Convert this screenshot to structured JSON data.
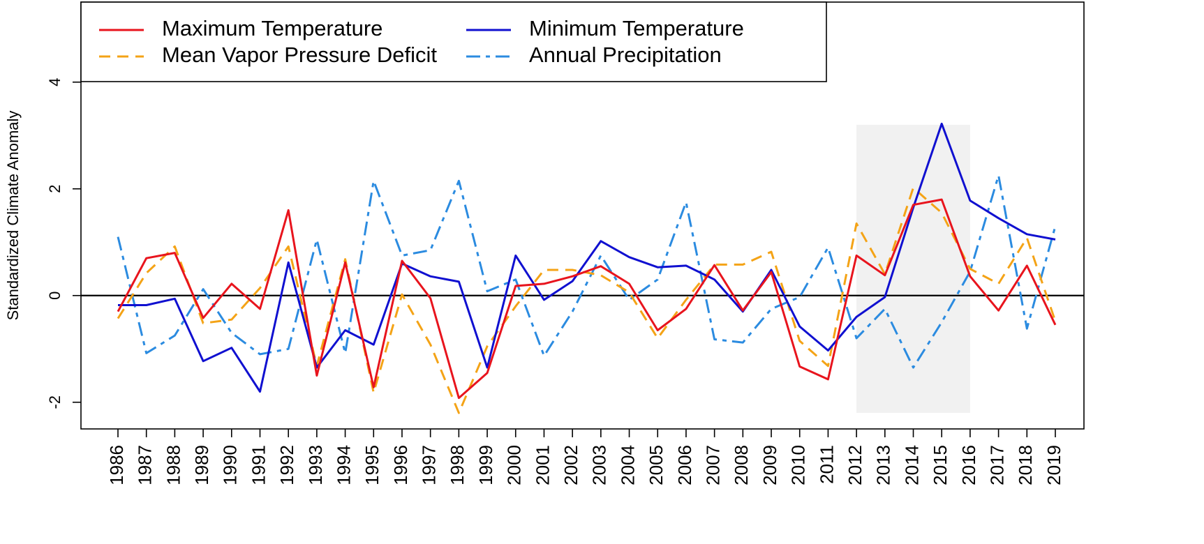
{
  "chart_data": {
    "type": "line",
    "ylabel": "Standardized Climate Anomaly",
    "ylim": [
      -2.5,
      5.5
    ],
    "yticks": [
      -2,
      0,
      2,
      4
    ],
    "ytick_labels": [
      "-2",
      "0",
      "2",
      "4"
    ],
    "zero_line": true,
    "grid": false,
    "legend_placement": "top-left",
    "shaded_range": [
      2012,
      2016
    ],
    "shaded_ylim": [
      -2.2,
      3.2
    ],
    "x": [
      1986,
      1987,
      1988,
      1989,
      1990,
      1991,
      1992,
      1993,
      1994,
      1995,
      1996,
      1997,
      1998,
      1999,
      2000,
      2001,
      2002,
      2003,
      2004,
      2005,
      2006,
      2007,
      2008,
      2009,
      2010,
      2011,
      2012,
      2013,
      2014,
      2015,
      2016,
      2017,
      2018,
      2019
    ],
    "xtick_labels": [
      "1986",
      "1987",
      "1988",
      "1989",
      "1990",
      "1991",
      "1992",
      "1993",
      "1994",
      "1995",
      "1996",
      "1997",
      "1998",
      "1999",
      "2000",
      "2001",
      "2002",
      "2003",
      "2004",
      "2005",
      "2006",
      "2007",
      "2008",
      "2009",
      "2010",
      "2011",
      "2012",
      "2013",
      "2014",
      "2015",
      "2016",
      "2017",
      "2018",
      "2019"
    ],
    "series": [
      {
        "name": "Maximum Temperature",
        "color": "#e8141d",
        "dash": "solid",
        "values": [
          -0.3,
          0.7,
          0.8,
          -0.42,
          0.22,
          -0.25,
          1.6,
          -1.5,
          0.62,
          -1.72,
          0.65,
          -0.05,
          -1.92,
          -1.45,
          0.18,
          0.22,
          0.36,
          0.55,
          0.22,
          -0.65,
          -0.25,
          0.57,
          -0.28,
          0.44,
          -1.33,
          -1.57,
          0.75,
          0.38,
          1.7,
          1.8,
          0.36,
          -0.28,
          0.56,
          -0.55
        ]
      },
      {
        "name": "Minimum Temperature",
        "color": "#1010d0",
        "dash": "solid",
        "values": [
          -0.18,
          -0.18,
          -0.06,
          -1.23,
          -0.98,
          -1.8,
          0.62,
          -1.35,
          -0.65,
          -0.92,
          0.6,
          0.36,
          0.26,
          -1.35,
          0.75,
          -0.08,
          0.27,
          1.02,
          0.72,
          0.53,
          0.56,
          0.3,
          -0.3,
          0.48,
          -0.58,
          -1.03,
          -0.4,
          -0.03,
          1.65,
          3.22,
          1.78,
          1.45,
          1.15,
          1.05
        ]
      },
      {
        "name": "Mean Vapor Pressure Deficit",
        "color": "#f4a316",
        "dash": "dashed",
        "values": [
          -0.43,
          0.42,
          0.92,
          -0.52,
          -0.45,
          0.14,
          0.92,
          -1.32,
          0.68,
          -1.82,
          0.02,
          -0.92,
          -2.2,
          -0.95,
          -0.2,
          0.48,
          0.48,
          0.38,
          0.06,
          -0.8,
          -0.08,
          0.58,
          0.58,
          0.82,
          -0.85,
          -1.32,
          1.35,
          0.4,
          2.02,
          1.55,
          0.5,
          0.22,
          1.08,
          -0.48
        ]
      },
      {
        "name": "Annual Precipitation",
        "color": "#2b8be0",
        "dash": "dashdot",
        "values": [
          1.1,
          -1.08,
          -0.75,
          0.12,
          -0.7,
          -1.1,
          -1.0,
          1.05,
          -1.08,
          2.15,
          0.75,
          0.85,
          2.15,
          0.08,
          0.3,
          -1.13,
          -0.3,
          0.75,
          -0.08,
          0.3,
          1.75,
          -0.82,
          -0.88,
          -0.25,
          -0.03,
          0.9,
          -0.8,
          -0.25,
          -1.35,
          -0.5,
          0.45,
          2.25,
          -0.62,
          1.3
        ]
      }
    ]
  }
}
